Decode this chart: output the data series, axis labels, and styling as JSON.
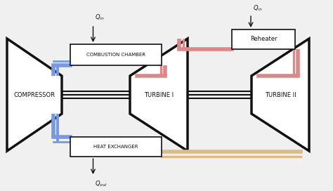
{
  "bg_color": "#f0f0f0",
  "line_color": "#111111",
  "blue_color": "#7799dd",
  "red_color": "#dd8888",
  "orange_color": "#ddbb88",
  "box_face": "#ffffff",
  "compressor_label": "COMPRESSOR",
  "turbine1_label": "TURBINE I",
  "turbine2_label": "TURBINE II",
  "combustion_label": "COMBUSTION CHAMBER",
  "reheater_label": "Reheater",
  "heat_exchanger_label": "HEAT EXCHANGER",
  "figsize": [
    4.74,
    2.72
  ],
  "dpi": 100
}
